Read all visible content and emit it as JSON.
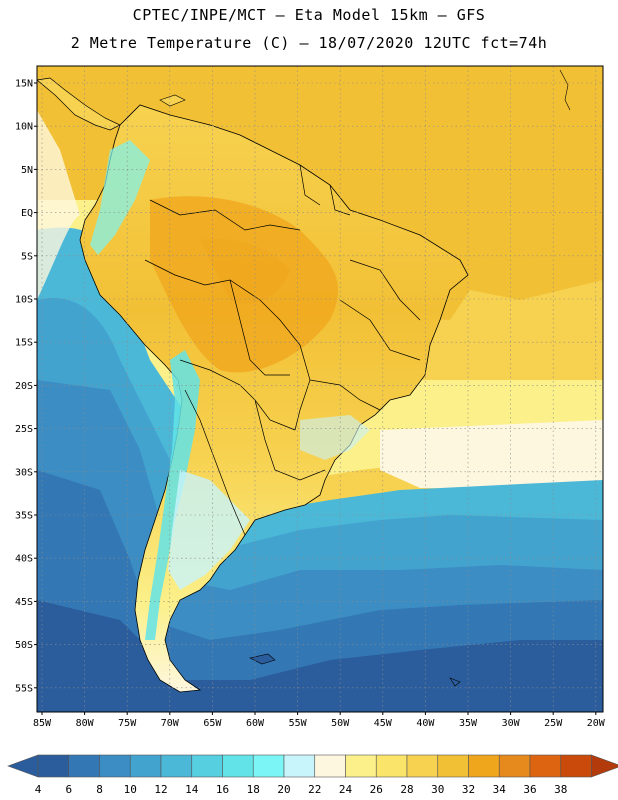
{
  "header": {
    "line1": "CPTEC/INPE/MCT –  Eta Model 15km – GFS",
    "line2": "2 Metre Temperature (C) – 18/07/2020 12UTC fct=74h"
  },
  "map": {
    "lat_labels": [
      "15N",
      "10N",
      "5N",
      "EQ",
      "5S",
      "10S",
      "15S",
      "20S",
      "25S",
      "30S",
      "35S",
      "40S",
      "45S",
      "50S",
      "55S"
    ],
    "lon_labels": [
      "85W",
      "80W",
      "75W",
      "70W",
      "65W",
      "60W",
      "55W",
      "50W",
      "45W",
      "40W",
      "35W",
      "30W",
      "25W",
      "20W"
    ]
  },
  "colorbar": {
    "labels": [
      "4",
      "6",
      "8",
      "10",
      "12",
      "14",
      "16",
      "18",
      "20",
      "22",
      "24",
      "26",
      "28",
      "30",
      "32",
      "34",
      "36",
      "38"
    ],
    "colors": [
      "#2b5d9c",
      "#3378b4",
      "#3b8dc3",
      "#43a3cf",
      "#4cb8d8",
      "#56cfe0",
      "#62e3e8",
      "#7bf5f5",
      "#c8f4fb",
      "#fef7df",
      "#fbf08a",
      "#fbe46a",
      "#f7d250",
      "#f2c035",
      "#f0a61c",
      "#e68a1d",
      "#dd6410",
      "#c94a0a",
      "#b33a0a"
    ]
  }
}
